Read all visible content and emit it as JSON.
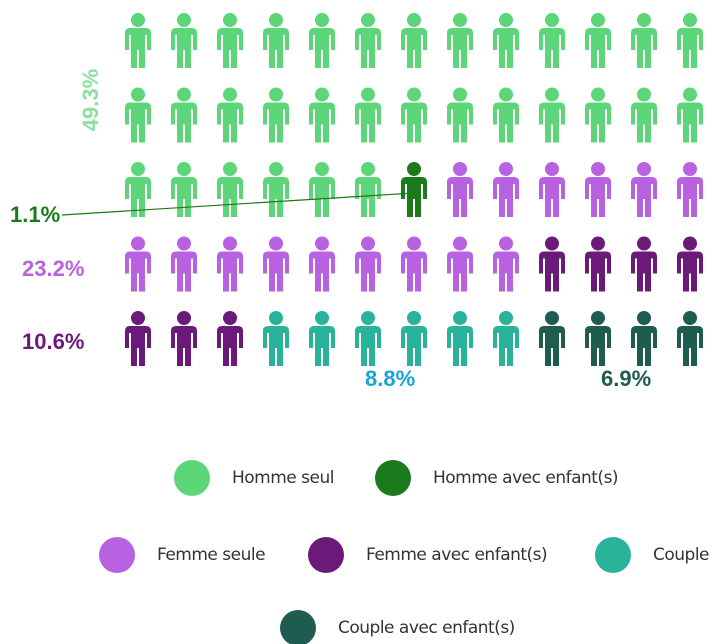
{
  "chart_data": {
    "type": "waffle",
    "series": [
      {
        "name": "Homme seul",
        "color": "#5dd67a",
        "label_color": "#8ee0a0",
        "values": [
          49.3
        ],
        "value_labels": [
          "49.3%"
        ],
        "icons": 32
      },
      {
        "name": "Homme avec enfant(s)",
        "color": "#1b7a1b",
        "label_color": "#1b7a1b",
        "values": [
          1.1
        ],
        "value_labels": [
          "1.1%"
        ],
        "icons": 1
      },
      {
        "name": "Femme seule",
        "color": "#b862e2",
        "label_color": "#b862e2",
        "values": [
          23.2
        ],
        "value_labels": [
          "23.2%"
        ],
        "icons": 15
      },
      {
        "name": "Femme avec enfant(s)",
        "color": "#6c1a7a",
        "label_color": "#6c1a7a",
        "values": [
          10.6
        ],
        "value_labels": [
          "10.6%"
        ],
        "icons": 7
      },
      {
        "name": "Couple",
        "color": "#29b39b",
        "label_color": "#1aa3d9",
        "values": [
          8.8
        ],
        "value_labels": [
          "8.8%"
        ],
        "icons": 6
      },
      {
        "name": "Couple avec enfant(s)",
        "color": "#1f5c50",
        "label_color": "#1f5c50",
        "values": [
          6.9
        ],
        "value_labels": [
          "6.9%"
        ],
        "icons": 4
      }
    ]
  }
}
